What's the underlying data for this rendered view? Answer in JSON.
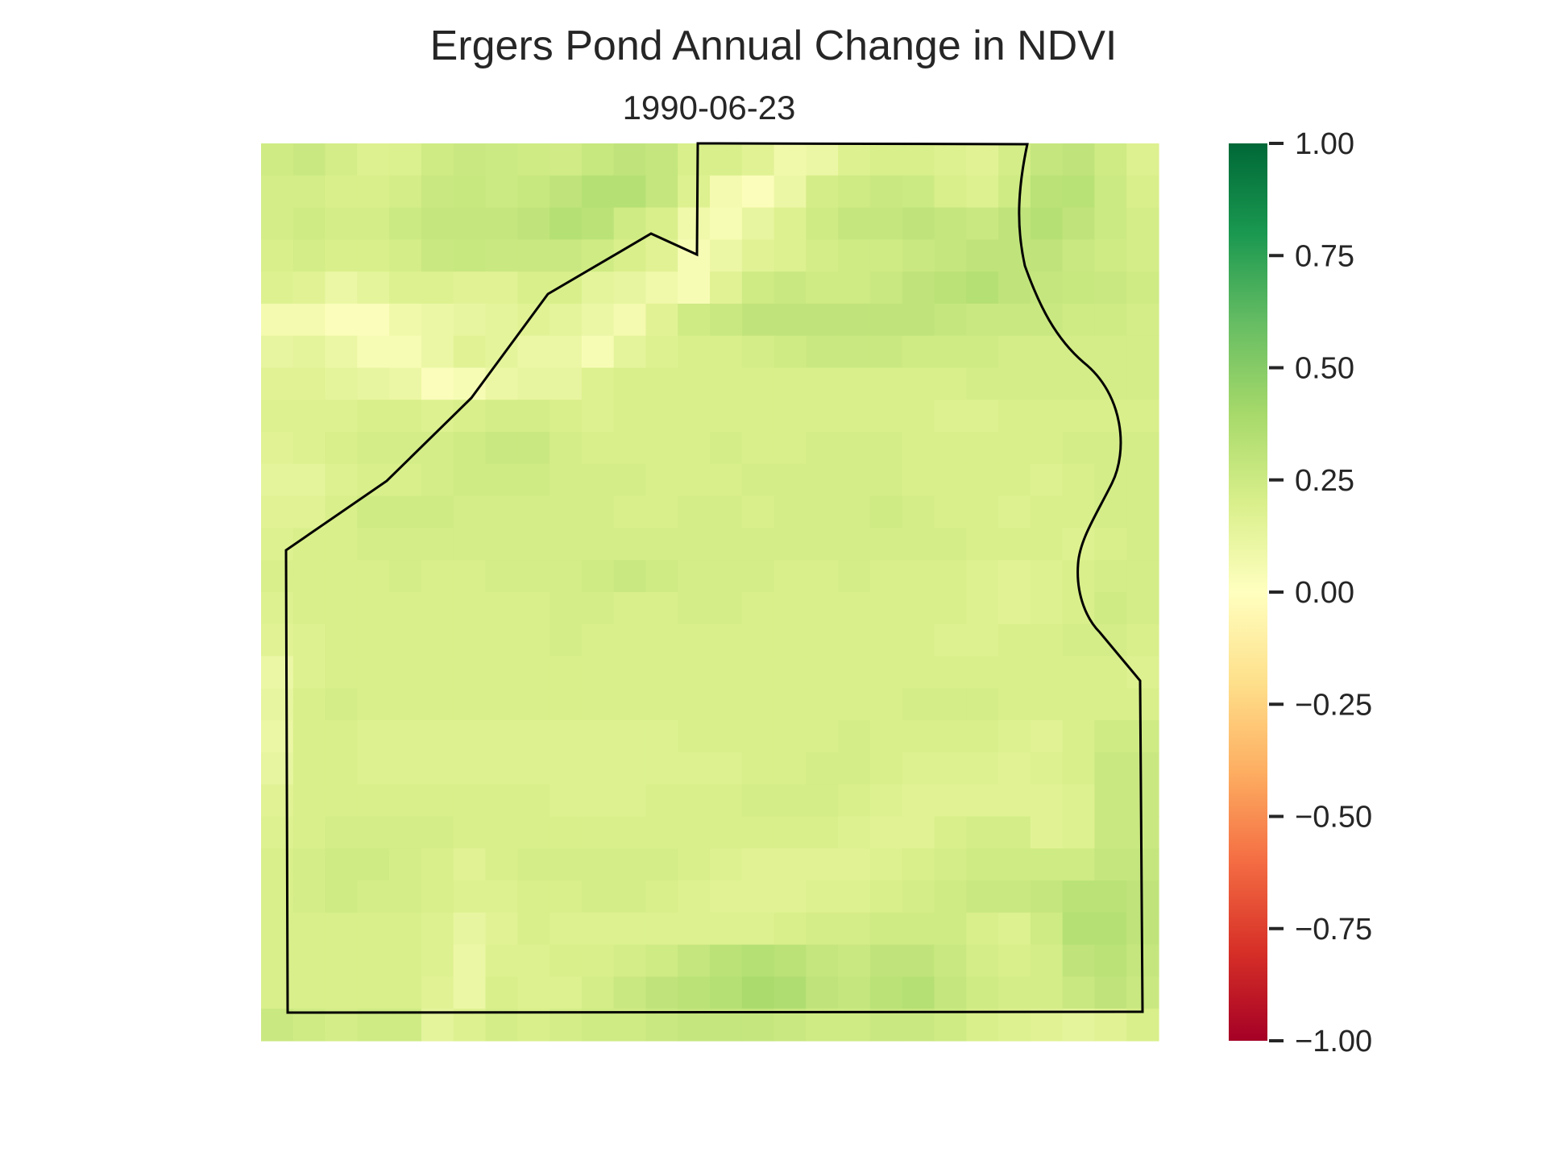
{
  "chart_data": {
    "type": "heatmap",
    "title": "Ergers Pond Annual Change in NDVI",
    "subtitle": "1990-06-23",
    "colormap": "RdYlGn",
    "vmin": -1.0,
    "vmax": 1.0,
    "colorbar_ticks": [
      "1.00",
      "0.75",
      "0.50",
      "0.25",
      "0.00",
      "−0.25",
      "−0.50",
      "−0.75",
      "−1.00"
    ],
    "colorbar_tick_values": [
      1.0,
      0.75,
      0.5,
      0.25,
      0.0,
      -0.25,
      -0.5,
      -0.75,
      -1.0
    ],
    "grid": false,
    "rows": 28,
    "cols": 28,
    "values": [
      [
        0.24,
        0.26,
        0.22,
        0.18,
        0.19,
        0.24,
        0.26,
        0.25,
        0.24,
        0.23,
        0.27,
        0.3,
        0.28,
        0.2,
        0.2,
        0.16,
        0.08,
        0.1,
        0.18,
        0.2,
        0.2,
        0.18,
        0.16,
        0.22,
        0.28,
        0.3,
        0.24,
        0.18
      ],
      [
        0.22,
        0.22,
        0.2,
        0.2,
        0.22,
        0.26,
        0.27,
        0.25,
        0.27,
        0.3,
        0.34,
        0.34,
        0.28,
        0.18,
        0.06,
        0.02,
        0.1,
        0.22,
        0.24,
        0.26,
        0.25,
        0.2,
        0.18,
        0.24,
        0.32,
        0.33,
        0.25,
        0.2
      ],
      [
        0.22,
        0.24,
        0.22,
        0.22,
        0.25,
        0.28,
        0.28,
        0.28,
        0.3,
        0.34,
        0.32,
        0.24,
        0.2,
        0.08,
        0.04,
        0.12,
        0.18,
        0.24,
        0.28,
        0.28,
        0.3,
        0.28,
        0.26,
        0.3,
        0.34,
        0.3,
        0.25,
        0.22
      ],
      [
        0.2,
        0.22,
        0.2,
        0.2,
        0.22,
        0.26,
        0.27,
        0.26,
        0.26,
        0.26,
        0.24,
        0.2,
        0.16,
        0.04,
        0.1,
        0.16,
        0.18,
        0.22,
        0.24,
        0.24,
        0.26,
        0.28,
        0.3,
        0.3,
        0.3,
        0.26,
        0.24,
        0.22
      ],
      [
        0.18,
        0.16,
        0.1,
        0.14,
        0.18,
        0.18,
        0.16,
        0.16,
        0.2,
        0.2,
        0.14,
        0.12,
        0.08,
        0.04,
        0.16,
        0.24,
        0.26,
        0.24,
        0.24,
        0.26,
        0.3,
        0.32,
        0.34,
        0.3,
        0.28,
        0.27,
        0.26,
        0.24
      ],
      [
        0.06,
        0.06,
        0.02,
        0.02,
        0.08,
        0.1,
        0.12,
        0.14,
        0.16,
        0.14,
        0.1,
        0.06,
        0.16,
        0.24,
        0.26,
        0.3,
        0.3,
        0.3,
        0.3,
        0.3,
        0.3,
        0.28,
        0.26,
        0.26,
        0.26,
        0.24,
        0.24,
        0.22
      ],
      [
        0.12,
        0.14,
        0.1,
        0.04,
        0.04,
        0.1,
        0.16,
        0.14,
        0.1,
        0.1,
        0.04,
        0.14,
        0.18,
        0.2,
        0.2,
        0.22,
        0.24,
        0.26,
        0.26,
        0.26,
        0.24,
        0.24,
        0.24,
        0.22,
        0.22,
        0.22,
        0.22,
        0.22
      ],
      [
        0.16,
        0.16,
        0.14,
        0.12,
        0.1,
        0.02,
        0.04,
        0.1,
        0.12,
        0.12,
        0.18,
        0.2,
        0.2,
        0.2,
        0.2,
        0.2,
        0.2,
        0.2,
        0.2,
        0.2,
        0.2,
        0.2,
        0.22,
        0.22,
        0.22,
        0.22,
        0.22,
        0.22
      ],
      [
        0.18,
        0.18,
        0.18,
        0.2,
        0.2,
        0.18,
        0.2,
        0.22,
        0.22,
        0.2,
        0.18,
        0.2,
        0.2,
        0.2,
        0.2,
        0.2,
        0.2,
        0.2,
        0.2,
        0.2,
        0.2,
        0.18,
        0.18,
        0.2,
        0.2,
        0.2,
        0.2,
        0.2
      ],
      [
        0.16,
        0.18,
        0.2,
        0.22,
        0.22,
        0.22,
        0.24,
        0.26,
        0.26,
        0.22,
        0.2,
        0.2,
        0.2,
        0.2,
        0.22,
        0.2,
        0.2,
        0.22,
        0.22,
        0.22,
        0.2,
        0.2,
        0.2,
        0.2,
        0.2,
        0.22,
        0.22,
        0.22
      ],
      [
        0.14,
        0.14,
        0.18,
        0.2,
        0.2,
        0.22,
        0.24,
        0.24,
        0.24,
        0.22,
        0.22,
        0.22,
        0.2,
        0.2,
        0.2,
        0.22,
        0.22,
        0.22,
        0.22,
        0.22,
        0.2,
        0.2,
        0.2,
        0.2,
        0.18,
        0.2,
        0.22,
        0.22
      ],
      [
        0.16,
        0.16,
        0.2,
        0.24,
        0.24,
        0.24,
        0.22,
        0.22,
        0.22,
        0.22,
        0.22,
        0.2,
        0.2,
        0.22,
        0.22,
        0.2,
        0.22,
        0.22,
        0.22,
        0.24,
        0.22,
        0.2,
        0.2,
        0.18,
        0.2,
        0.2,
        0.22,
        0.22
      ],
      [
        0.18,
        0.2,
        0.2,
        0.22,
        0.22,
        0.22,
        0.22,
        0.22,
        0.22,
        0.22,
        0.22,
        0.22,
        0.22,
        0.22,
        0.22,
        0.22,
        0.22,
        0.22,
        0.22,
        0.22,
        0.22,
        0.22,
        0.2,
        0.2,
        0.2,
        0.18,
        0.2,
        0.22
      ],
      [
        0.2,
        0.2,
        0.2,
        0.2,
        0.22,
        0.2,
        0.2,
        0.22,
        0.22,
        0.22,
        0.24,
        0.26,
        0.24,
        0.22,
        0.22,
        0.22,
        0.2,
        0.2,
        0.22,
        0.2,
        0.2,
        0.2,
        0.18,
        0.16,
        0.18,
        0.2,
        0.22,
        0.22
      ],
      [
        0.18,
        0.2,
        0.2,
        0.2,
        0.2,
        0.2,
        0.2,
        0.2,
        0.2,
        0.22,
        0.22,
        0.2,
        0.2,
        0.22,
        0.22,
        0.2,
        0.2,
        0.2,
        0.2,
        0.2,
        0.2,
        0.2,
        0.18,
        0.16,
        0.18,
        0.2,
        0.24,
        0.22
      ],
      [
        0.16,
        0.18,
        0.2,
        0.2,
        0.2,
        0.2,
        0.2,
        0.2,
        0.2,
        0.22,
        0.2,
        0.2,
        0.2,
        0.2,
        0.2,
        0.2,
        0.2,
        0.2,
        0.2,
        0.2,
        0.2,
        0.18,
        0.18,
        0.2,
        0.2,
        0.22,
        0.22,
        0.2
      ],
      [
        0.1,
        0.18,
        0.2,
        0.2,
        0.2,
        0.2,
        0.2,
        0.2,
        0.2,
        0.2,
        0.2,
        0.2,
        0.2,
        0.2,
        0.2,
        0.2,
        0.2,
        0.2,
        0.2,
        0.2,
        0.2,
        0.2,
        0.2,
        0.2,
        0.2,
        0.2,
        0.2,
        0.18
      ],
      [
        0.12,
        0.2,
        0.22,
        0.2,
        0.2,
        0.2,
        0.2,
        0.2,
        0.2,
        0.2,
        0.2,
        0.2,
        0.2,
        0.2,
        0.2,
        0.2,
        0.2,
        0.2,
        0.2,
        0.2,
        0.22,
        0.22,
        0.22,
        0.2,
        0.2,
        0.2,
        0.2,
        0.2
      ],
      [
        0.1,
        0.2,
        0.2,
        0.18,
        0.18,
        0.18,
        0.18,
        0.18,
        0.18,
        0.18,
        0.18,
        0.18,
        0.18,
        0.2,
        0.2,
        0.2,
        0.2,
        0.2,
        0.22,
        0.2,
        0.2,
        0.2,
        0.2,
        0.18,
        0.16,
        0.2,
        0.24,
        0.24
      ],
      [
        0.12,
        0.2,
        0.2,
        0.18,
        0.18,
        0.18,
        0.18,
        0.18,
        0.18,
        0.18,
        0.18,
        0.18,
        0.18,
        0.18,
        0.18,
        0.2,
        0.2,
        0.22,
        0.22,
        0.2,
        0.18,
        0.18,
        0.18,
        0.16,
        0.18,
        0.2,
        0.26,
        0.26
      ],
      [
        0.16,
        0.2,
        0.2,
        0.2,
        0.2,
        0.2,
        0.2,
        0.2,
        0.2,
        0.18,
        0.18,
        0.18,
        0.2,
        0.2,
        0.2,
        0.22,
        0.22,
        0.22,
        0.2,
        0.18,
        0.16,
        0.16,
        0.16,
        0.16,
        0.16,
        0.18,
        0.26,
        0.26
      ],
      [
        0.18,
        0.2,
        0.22,
        0.22,
        0.22,
        0.22,
        0.2,
        0.2,
        0.2,
        0.2,
        0.2,
        0.2,
        0.2,
        0.2,
        0.2,
        0.2,
        0.2,
        0.2,
        0.18,
        0.16,
        0.16,
        0.2,
        0.22,
        0.22,
        0.16,
        0.18,
        0.26,
        0.26
      ],
      [
        0.2,
        0.22,
        0.24,
        0.24,
        0.22,
        0.2,
        0.16,
        0.2,
        0.22,
        0.22,
        0.22,
        0.22,
        0.22,
        0.2,
        0.18,
        0.16,
        0.16,
        0.16,
        0.16,
        0.18,
        0.2,
        0.22,
        0.24,
        0.24,
        0.24,
        0.24,
        0.28,
        0.28
      ],
      [
        0.2,
        0.22,
        0.24,
        0.22,
        0.22,
        0.2,
        0.18,
        0.18,
        0.2,
        0.2,
        0.22,
        0.22,
        0.2,
        0.18,
        0.16,
        0.16,
        0.16,
        0.18,
        0.18,
        0.2,
        0.22,
        0.24,
        0.26,
        0.26,
        0.28,
        0.32,
        0.32,
        0.3
      ],
      [
        0.2,
        0.2,
        0.2,
        0.2,
        0.2,
        0.18,
        0.12,
        0.16,
        0.2,
        0.18,
        0.18,
        0.18,
        0.18,
        0.18,
        0.18,
        0.18,
        0.2,
        0.22,
        0.22,
        0.24,
        0.24,
        0.24,
        0.2,
        0.18,
        0.24,
        0.34,
        0.34,
        0.3
      ],
      [
        0.2,
        0.2,
        0.2,
        0.2,
        0.2,
        0.18,
        0.1,
        0.18,
        0.18,
        0.2,
        0.2,
        0.22,
        0.24,
        0.28,
        0.32,
        0.34,
        0.32,
        0.28,
        0.26,
        0.3,
        0.3,
        0.26,
        0.22,
        0.2,
        0.22,
        0.3,
        0.32,
        0.28
      ],
      [
        0.2,
        0.2,
        0.2,
        0.2,
        0.2,
        0.16,
        0.1,
        0.2,
        0.18,
        0.18,
        0.22,
        0.26,
        0.3,
        0.32,
        0.34,
        0.38,
        0.36,
        0.3,
        0.28,
        0.32,
        0.34,
        0.28,
        0.24,
        0.22,
        0.22,
        0.26,
        0.3,
        0.26
      ],
      [
        0.26,
        0.24,
        0.22,
        0.24,
        0.24,
        0.14,
        0.18,
        0.22,
        0.2,
        0.22,
        0.24,
        0.24,
        0.26,
        0.28,
        0.28,
        0.28,
        0.26,
        0.24,
        0.24,
        0.26,
        0.26,
        0.24,
        0.2,
        0.18,
        0.16,
        0.14,
        0.16,
        0.2
      ]
    ],
    "boundary_label": "Ergers Pond"
  }
}
